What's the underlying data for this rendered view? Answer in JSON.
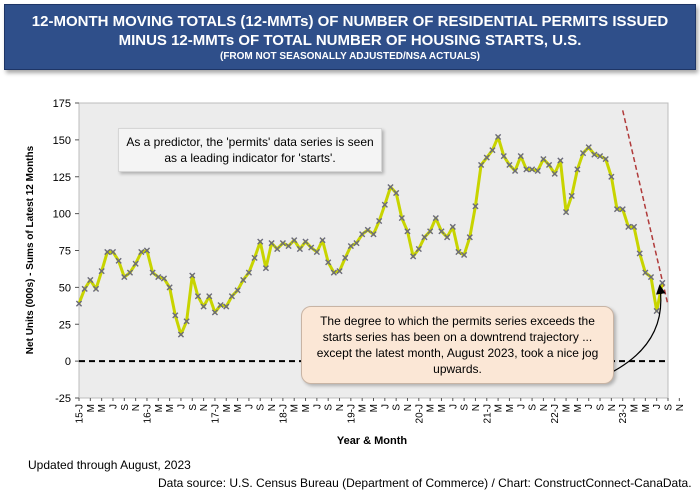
{
  "header": {
    "title_line1": "12-MONTH MOVING TOTALS (12-MMTs) OF NUMBER OF RESIDENTIAL PERMITS ISSUED",
    "title_line2": "MINUS 12-MMTs OF TOTAL NUMBER OF HOUSING STARTS, U.S.",
    "subtitle": "(FROM NOT SEASONALLY ADJUSTED/NSA ACTUALS)"
  },
  "annotations": {
    "top_note": "As a predictor, the 'permits' data series is seen as a leading indicator for 'starts'.",
    "bottom_note": "The degree to which the permits series exceeds the starts series has been on a downtrend trajectory ... except the latest month, August 2023, took a nice jog upwards."
  },
  "footer": {
    "updated": "Updated through August, 2023",
    "source": "Data source: U.S. Census Bureau (Department of Commerce) / Chart: ConstructConnect-CanaData."
  },
  "colors": {
    "line": "#c8d400",
    "marker": "#6b6b7b",
    "trend": "#b03a3a",
    "zero_line": "#000000",
    "plot_bg": "#ececec"
  },
  "chart_data": {
    "type": "line",
    "title": "12-MONTH MOVING TOTALS (12-MMTs) OF NUMBER OF RESIDENTIAL PERMITS ISSUED MINUS 12-MMTs OF TOTAL NUMBER OF HOUSING STARTS, U.S.",
    "xlabel": "Year & Month",
    "ylabel": "Net Units (000s) - Sums of Latest 12 Months",
    "ylim": [
      -25,
      175
    ],
    "yticks": [
      -25,
      0,
      25,
      50,
      75,
      100,
      125,
      150,
      175
    ],
    "grid": false,
    "x_tick_labels": [
      "15-J",
      "M",
      "M",
      "J",
      "S",
      "N",
      "16-J",
      "M",
      "M",
      "J",
      "S",
      "N",
      "17-J",
      "M",
      "M",
      "J",
      "S",
      "N",
      "18-J",
      "M",
      "M",
      "J",
      "S",
      "N",
      "19-J",
      "M",
      "M",
      "J",
      "S",
      "N",
      "20-J",
      "M",
      "M",
      "J",
      "S",
      "N",
      "21-J",
      "M",
      "M",
      "J",
      "S",
      "N",
      "22-J",
      "M",
      "M",
      "J",
      "S",
      "N",
      "23-J",
      "M",
      "M",
      "J",
      "S",
      "N"
    ],
    "series": [
      {
        "name": "Permits minus starts (12-MMT, 000s)",
        "start": "2015-01",
        "end": "2023-08",
        "values": [
          39,
          49,
          55,
          49,
          61,
          74,
          74,
          68,
          57,
          60,
          66,
          74,
          75,
          60,
          57,
          56,
          50,
          31,
          18,
          27,
          58,
          44,
          37,
          44,
          33,
          38,
          37,
          44,
          48,
          55,
          60,
          70,
          81,
          63,
          80,
          76,
          80,
          78,
          82,
          76,
          81,
          77,
          74,
          82,
          67,
          60,
          61,
          70,
          78,
          80,
          86,
          89,
          86,
          95,
          106,
          118,
          114,
          97,
          88,
          71,
          76,
          84,
          88,
          97,
          88,
          84,
          91,
          74,
          72,
          84,
          105,
          133,
          138,
          143,
          152,
          139,
          133,
          129,
          139,
          130,
          130,
          129,
          137,
          133,
          127,
          136,
          101,
          112,
          130,
          141,
          145,
          140,
          139,
          137,
          125,
          103,
          103,
          91,
          91,
          73,
          60,
          57,
          34,
          53
        ]
      }
    ],
    "trend_line": {
      "from": {
        "date": "2023-01",
        "value": 170
      },
      "to": {
        "date": "2023-09",
        "value": 38
      }
    }
  }
}
